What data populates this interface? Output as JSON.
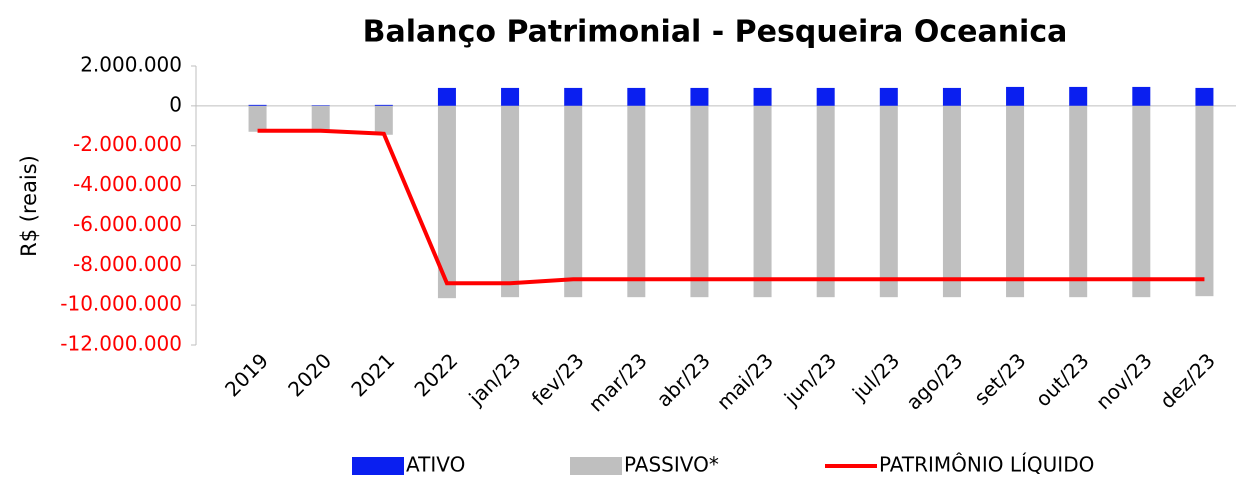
{
  "chart_data": {
    "type": "bar_line",
    "title": "Balanço Patrimonial - Pesqueira Oceanica",
    "y_label": "R$ (reais)",
    "categories": [
      "2019",
      "2020",
      "2021",
      "2022",
      "jan/23",
      "fev/23",
      "mar/23",
      "abr/23",
      "mai/23",
      "jun/23",
      "jul/23",
      "ago/23",
      "set/23",
      "out/23",
      "nov/23",
      "dez/23"
    ],
    "series": [
      {
        "name": "ATIVO",
        "kind": "bar",
        "color": "#0a1ff0",
        "values": [
          50000,
          30000,
          50000,
          900000,
          900000,
          900000,
          900000,
          900000,
          900000,
          900000,
          900000,
          900000,
          950000,
          950000,
          950000,
          900000
        ]
      },
      {
        "name": "PASSIVO*",
        "kind": "bar",
        "color": "#bfbfbf",
        "values": [
          -1300000,
          -1300000,
          -1450000,
          -9650000,
          -9600000,
          -9600000,
          -9600000,
          -9600000,
          -9600000,
          -9600000,
          -9600000,
          -9600000,
          -9600000,
          -9600000,
          -9600000,
          -9550000
        ]
      },
      {
        "name": "PATRIMÔNIO LÍQUIDO",
        "kind": "line",
        "color": "#ff0000",
        "values": [
          -1250000,
          -1250000,
          -1400000,
          -8900000,
          -8900000,
          -8700000,
          -8700000,
          -8700000,
          -8700000,
          -8700000,
          -8700000,
          -8700000,
          -8700000,
          -8700000,
          -8700000,
          -8700000
        ]
      }
    ],
    "ylim": [
      -12000000,
      2000000
    ],
    "yticks": [
      {
        "value": 2000000,
        "label": "2.000.000"
      },
      0,
      {
        "value": -2000000,
        "label": "-2.000.000"
      },
      {
        "value": -4000000,
        "label": "-4.000.000"
      },
      {
        "value": -6000000,
        "label": "-6.000.000"
      },
      {
        "value": -8000000,
        "label": "-8.000.000"
      },
      {
        "value": -10000000,
        "label": "-10.000.000"
      },
      {
        "value": -12000000,
        "label": "-12.000.000"
      }
    ],
    "negative_tick_color": "#ff0000",
    "legend": "bottom"
  }
}
